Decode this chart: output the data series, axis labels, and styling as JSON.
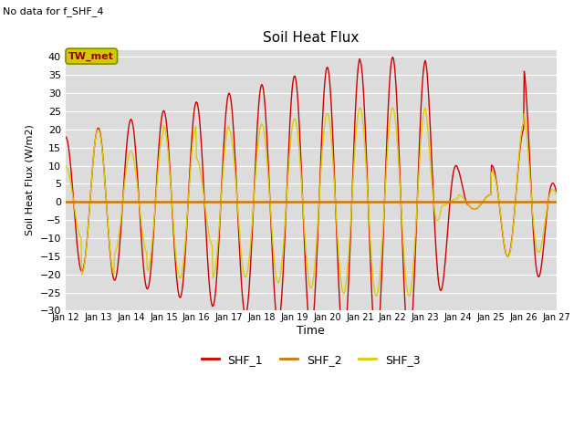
{
  "title": "Soil Heat Flux",
  "subtitle": "No data for f_SHF_4",
  "ylabel": "Soil Heat Flux (W/m2)",
  "xlabel": "Time",
  "ylim": [
    -30,
    42
  ],
  "yticks": [
    -30,
    -25,
    -20,
    -15,
    -10,
    -5,
    0,
    5,
    10,
    15,
    20,
    25,
    30,
    35,
    40
  ],
  "bg_color": "#dcdcdc",
  "legend_entries": [
    "SHF_1",
    "SHF_2",
    "SHF_3"
  ],
  "line_color_shf1": "#cc0000",
  "line_color_shf2": "#cc7700",
  "line_color_shf3": "#ddcc00",
  "tw_met_box_facecolor": "#cccc00",
  "tw_met_box_edgecolor": "#888800",
  "tw_met_text_color": "#990000"
}
